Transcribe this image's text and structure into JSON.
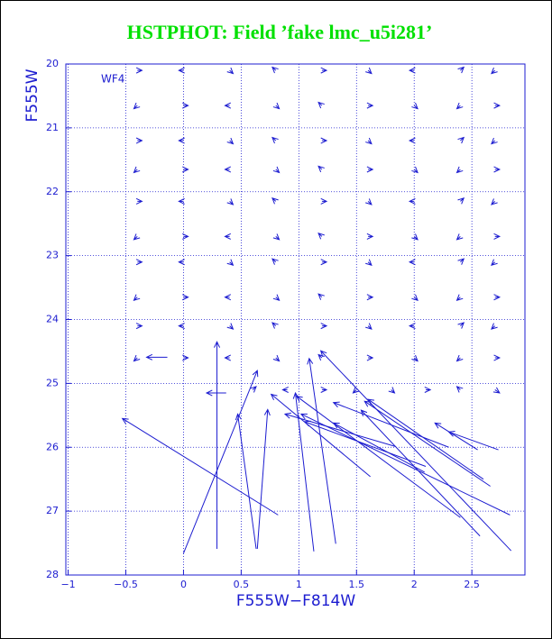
{
  "chart_data": {
    "type": "quiver",
    "title": "HSTPHOT: Field ’fake lmc_u5i281’",
    "xlabel": "F555W−F814W",
    "ylabel": "F555W",
    "annotation": "WF4",
    "color": "#1c1cd0",
    "title_color": "#00e000",
    "grid": true,
    "y_inverted": true,
    "xlim": [
      -1.02,
      2.96
    ],
    "ylim": [
      28,
      20
    ],
    "xticks": [
      {
        "value": -1,
        "label": "−1"
      },
      {
        "value": -0.5,
        "label": "−0.5"
      },
      0,
      0.5,
      1,
      1.5,
      2,
      2.5
    ],
    "yticks": [
      20,
      21,
      22,
      23,
      24,
      25,
      26,
      27,
      28
    ],
    "x": [
      -0.4,
      0,
      0.4,
      0.8,
      1.2,
      1.6,
      2,
      2.4,
      2.7,
      -0.4,
      0,
      0.4,
      0.8,
      1.2,
      1.6,
      2,
      2.4,
      2.7,
      -0.4,
      0,
      0.4,
      0.8,
      1.2,
      1.6,
      2,
      2.4,
      2.7,
      -0.4,
      0,
      0.4,
      0.8,
      1.2,
      1.6,
      2,
      2.4,
      2.7,
      -0.4,
      0,
      0.4,
      0.8,
      1.2,
      1.6,
      2,
      2.4,
      2.7,
      -0.4,
      0,
      0.4,
      0.8,
      1.2,
      1.6,
      2,
      2.4,
      2.7,
      -0.4,
      0,
      0.4,
      0.8,
      1.2,
      1.6,
      2,
      2.4,
      2.7,
      -0.4,
      0,
      0.4,
      0.8,
      1.2,
      1.6,
      2,
      2.4,
      2.7,
      -0.4,
      0,
      0.4,
      0.8,
      1.2,
      1.6,
      2,
      2.4,
      2.7,
      -0.4,
      0,
      0.4,
      0.8,
      1.2,
      1.6,
      2,
      2.4,
      2.7,
      0.6,
      0.9,
      1.2,
      1.5,
      1.8,
      2.1,
      2.4,
      2.7,
      0.82,
      0.29,
      0,
      0.63,
      0.64,
      1.13,
      1.32,
      2.84,
      2.83,
      2.57,
      2.66,
      2.73,
      1.62,
      2.09,
      2.55,
      1.84,
      2.4,
      2.6,
      0.37,
      -0.14,
      2.1,
      2.3
    ],
    "y": [
      20.1,
      20.1,
      20.1,
      20.1,
      20.1,
      20.1,
      20.1,
      20.1,
      20.1,
      20.65,
      20.65,
      20.65,
      20.65,
      20.65,
      20.65,
      20.65,
      20.65,
      20.65,
      21.2,
      21.2,
      21.2,
      21.2,
      21.2,
      21.2,
      21.2,
      21.2,
      21.2,
      21.65,
      21.65,
      21.65,
      21.65,
      21.65,
      21.65,
      21.65,
      21.65,
      21.65,
      22.15,
      22.15,
      22.15,
      22.15,
      22.15,
      22.15,
      22.15,
      22.15,
      22.15,
      22.7,
      22.7,
      22.7,
      22.7,
      22.7,
      22.7,
      22.7,
      22.7,
      22.7,
      23.1,
      23.1,
      23.1,
      23.1,
      23.1,
      23.1,
      23.1,
      23.1,
      23.1,
      23.65,
      23.65,
      23.65,
      23.65,
      23.65,
      23.65,
      23.65,
      23.65,
      23.65,
      24.1,
      24.1,
      24.1,
      24.1,
      24.1,
      24.1,
      24.1,
      24.1,
      24.1,
      24.6,
      24.6,
      24.6,
      24.6,
      24.6,
      24.6,
      24.6,
      24.6,
      24.6,
      25.1,
      25.1,
      25.1,
      25.1,
      25.1,
      25.1,
      25.1,
      25.1,
      27.06,
      27.59,
      27.66,
      27.59,
      27.59,
      27.63,
      27.51,
      27.62,
      27.06,
      27.39,
      26.61,
      26.04,
      26.46,
      26.39,
      26.04,
      25.99,
      27.1,
      26.5,
      25.15,
      24.59,
      26.3,
      26.0
    ],
    "x2": [
      -0.36,
      -0.04,
      0.43,
      0.77,
      1.24,
      1.63,
      1.96,
      2.43,
      2.67,
      -0.43,
      0.04,
      0.36,
      0.83,
      1.17,
      1.64,
      2.03,
      2.37,
      2.74,
      -0.36,
      -0.04,
      0.43,
      0.77,
      1.24,
      1.63,
      1.96,
      2.43,
      2.67,
      -0.43,
      0.04,
      0.36,
      0.83,
      1.17,
      1.64,
      2.03,
      2.37,
      2.74,
      -0.36,
      -0.04,
      0.43,
      0.77,
      1.24,
      1.63,
      1.96,
      2.43,
      2.67,
      -0.43,
      0.04,
      0.36,
      0.83,
      1.17,
      1.64,
      2.03,
      2.37,
      2.74,
      -0.36,
      -0.04,
      0.43,
      0.77,
      1.24,
      1.63,
      1.96,
      2.43,
      2.67,
      -0.43,
      0.04,
      0.36,
      0.83,
      1.17,
      1.64,
      2.03,
      2.37,
      2.74,
      -0.36,
      -0.04,
      0.43,
      0.77,
      1.24,
      1.63,
      1.96,
      2.43,
      2.67,
      -0.43,
      0.04,
      0.36,
      0.83,
      1.17,
      1.64,
      2.03,
      2.37,
      2.74,
      0.63,
      0.86,
      1.24,
      1.47,
      1.83,
      2.14,
      2.37,
      2.74,
      -0.53,
      0.29,
      0.64,
      0.47,
      0.73,
      0.97,
      1.09,
      1.19,
      1.02,
      1.54,
      1.57,
      2.3,
      0.76,
      1.3,
      2.18,
      0.88,
      0.98,
      1.6,
      0.2,
      -0.32,
      1.05,
      1.3
    ],
    "y2": [
      20.1,
      20.1,
      20.15,
      20.05,
      20.1,
      20.15,
      20.1,
      20.05,
      20.15,
      20.7,
      20.65,
      20.65,
      20.7,
      20.6,
      20.65,
      20.7,
      20.7,
      20.65,
      21.2,
      21.2,
      21.25,
      21.15,
      21.2,
      21.25,
      21.2,
      21.15,
      21.25,
      21.7,
      21.65,
      21.65,
      21.7,
      21.6,
      21.65,
      21.7,
      21.7,
      21.65,
      22.15,
      22.15,
      22.2,
      22.1,
      22.15,
      22.2,
      22.15,
      22.1,
      22.2,
      22.75,
      22.7,
      22.7,
      22.75,
      22.65,
      22.7,
      22.75,
      22.75,
      22.7,
      23.1,
      23.1,
      23.15,
      23.05,
      23.1,
      23.15,
      23.1,
      23.05,
      23.15,
      23.7,
      23.65,
      23.65,
      23.7,
      23.6,
      23.65,
      23.7,
      23.7,
      23.65,
      24.1,
      24.1,
      24.15,
      24.05,
      24.1,
      24.15,
      24.1,
      24.05,
      24.15,
      24.65,
      24.6,
      24.6,
      24.65,
      24.55,
      24.6,
      24.65,
      24.65,
      24.6,
      25.05,
      25.1,
      25.1,
      25.15,
      25.15,
      25.1,
      25.05,
      25.15,
      25.55,
      24.35,
      24.8,
      25.48,
      25.41,
      25.15,
      24.61,
      24.49,
      25.48,
      25.42,
      25.28,
      25.76,
      25.17,
      25.62,
      25.62,
      25.48,
      25.2,
      25.25,
      25.15,
      24.59,
      25.6,
      25.3
    ]
  }
}
